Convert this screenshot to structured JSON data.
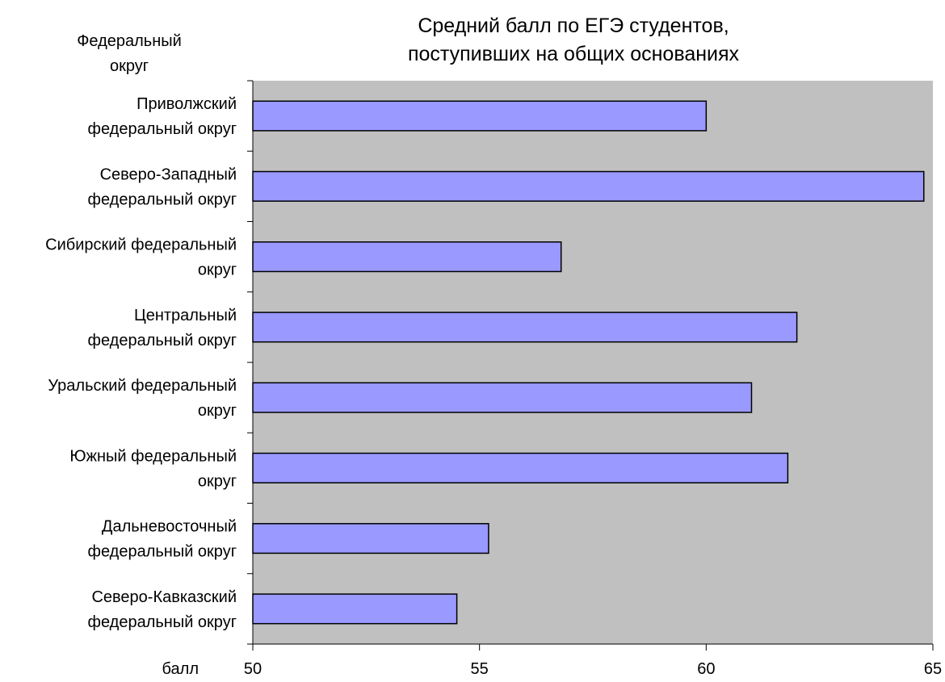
{
  "chart_data": {
    "type": "bar",
    "orientation": "horizontal",
    "title": [
      "Средний балл по ЕГЭ студентов,",
      "поступивших на общих основаниях"
    ],
    "ylabel": [
      "Федеральный",
      "округ"
    ],
    "xlabel": "балл",
    "xlim": [
      50,
      65
    ],
    "xticks": [
      50,
      55,
      60,
      65
    ],
    "xtick_labels": [
      "50",
      "55",
      "60",
      "65"
    ],
    "categories": [
      [
        "Приволжский",
        "федеральный округ"
      ],
      [
        "Северо-Западный",
        "федеральный округ"
      ],
      [
        "Сибирский федеральный",
        "округ"
      ],
      [
        "Центральный",
        "федеральный округ"
      ],
      [
        "Уральский федеральный",
        "округ"
      ],
      [
        "Южный федеральный",
        "округ"
      ],
      [
        "Дальневосточный",
        "федеральный округ"
      ],
      [
        "Северо-Кавказский",
        "федеральный округ"
      ]
    ],
    "values": [
      60.0,
      64.8,
      56.8,
      62.0,
      61.0,
      61.8,
      55.2,
      54.5
    ],
    "grid": false,
    "legend": "none",
    "colors": {
      "bar_fill": "#9999ff",
      "bar_stroke": "#000000",
      "plot_background": "#c0c0c0",
      "page_background": "#ffffff"
    }
  }
}
